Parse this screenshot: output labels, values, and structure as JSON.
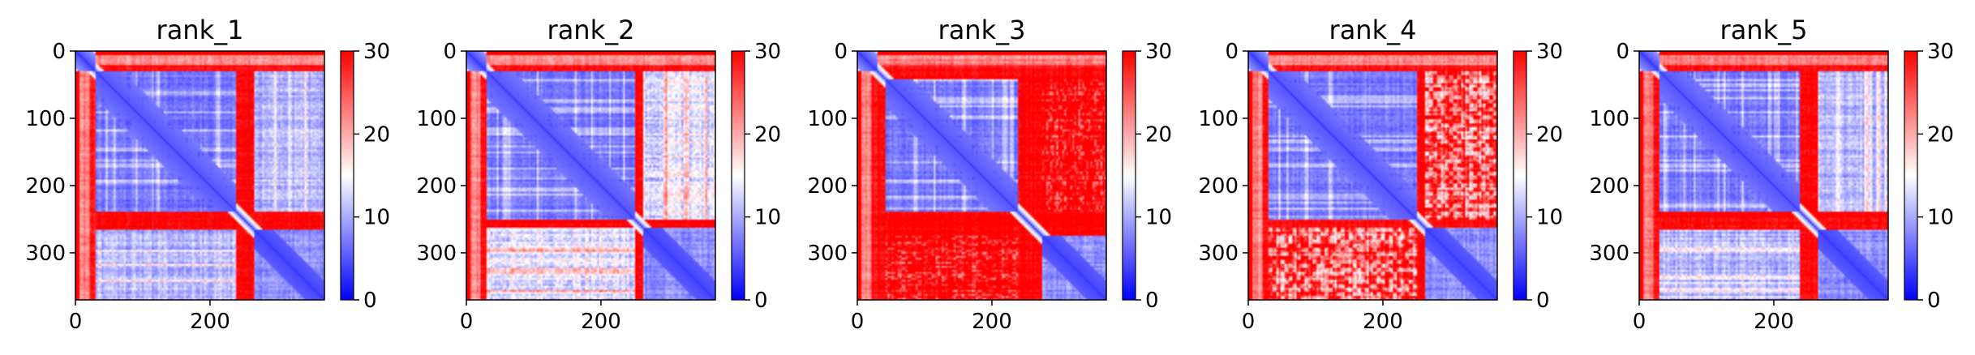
{
  "chart_data": [
    {
      "type": "heatmap",
      "title": "rank_1",
      "variant": 1,
      "matrix_size": 370,
      "x_ticks": [
        "0",
        "200"
      ],
      "y_ticks": [
        "0",
        "100",
        "200",
        "300"
      ],
      "colorbar": {
        "colormap": "bwr",
        "range": [
          0,
          30
        ],
        "ticks": [
          "0",
          "10",
          "20",
          "30"
        ]
      }
    },
    {
      "type": "heatmap",
      "title": "rank_2",
      "variant": 2,
      "matrix_size": 370,
      "x_ticks": [
        "0",
        "200"
      ],
      "y_ticks": [
        "0",
        "100",
        "200",
        "300"
      ],
      "colorbar": {
        "colormap": "bwr",
        "range": [
          0,
          30
        ],
        "ticks": [
          "0",
          "10",
          "20",
          "30"
        ]
      }
    },
    {
      "type": "heatmap",
      "title": "rank_3",
      "variant": 3,
      "matrix_size": 370,
      "x_ticks": [
        "0",
        "200"
      ],
      "y_ticks": [
        "0",
        "100",
        "200",
        "300"
      ],
      "colorbar": {
        "colormap": "bwr",
        "range": [
          0,
          30
        ],
        "ticks": [
          "0",
          "10",
          "20",
          "30"
        ]
      }
    },
    {
      "type": "heatmap",
      "title": "rank_4",
      "variant": 4,
      "matrix_size": 370,
      "x_ticks": [
        "0",
        "200"
      ],
      "y_ticks": [
        "0",
        "100",
        "200",
        "300"
      ],
      "colorbar": {
        "colormap": "bwr",
        "range": [
          0,
          30
        ],
        "ticks": [
          "0",
          "10",
          "20",
          "30"
        ]
      }
    },
    {
      "type": "heatmap",
      "title": "rank_5",
      "variant": 5,
      "matrix_size": 370,
      "x_ticks": [
        "0",
        "200"
      ],
      "y_ticks": [
        "0",
        "100",
        "200",
        "300"
      ],
      "colorbar": {
        "colormap": "bwr",
        "range": [
          0,
          30
        ],
        "ticks": [
          "0",
          "10",
          "20",
          "30"
        ]
      }
    }
  ],
  "colors": {
    "low": "#0000ff",
    "mid": "#ffffff",
    "high": "#ff0000"
  }
}
